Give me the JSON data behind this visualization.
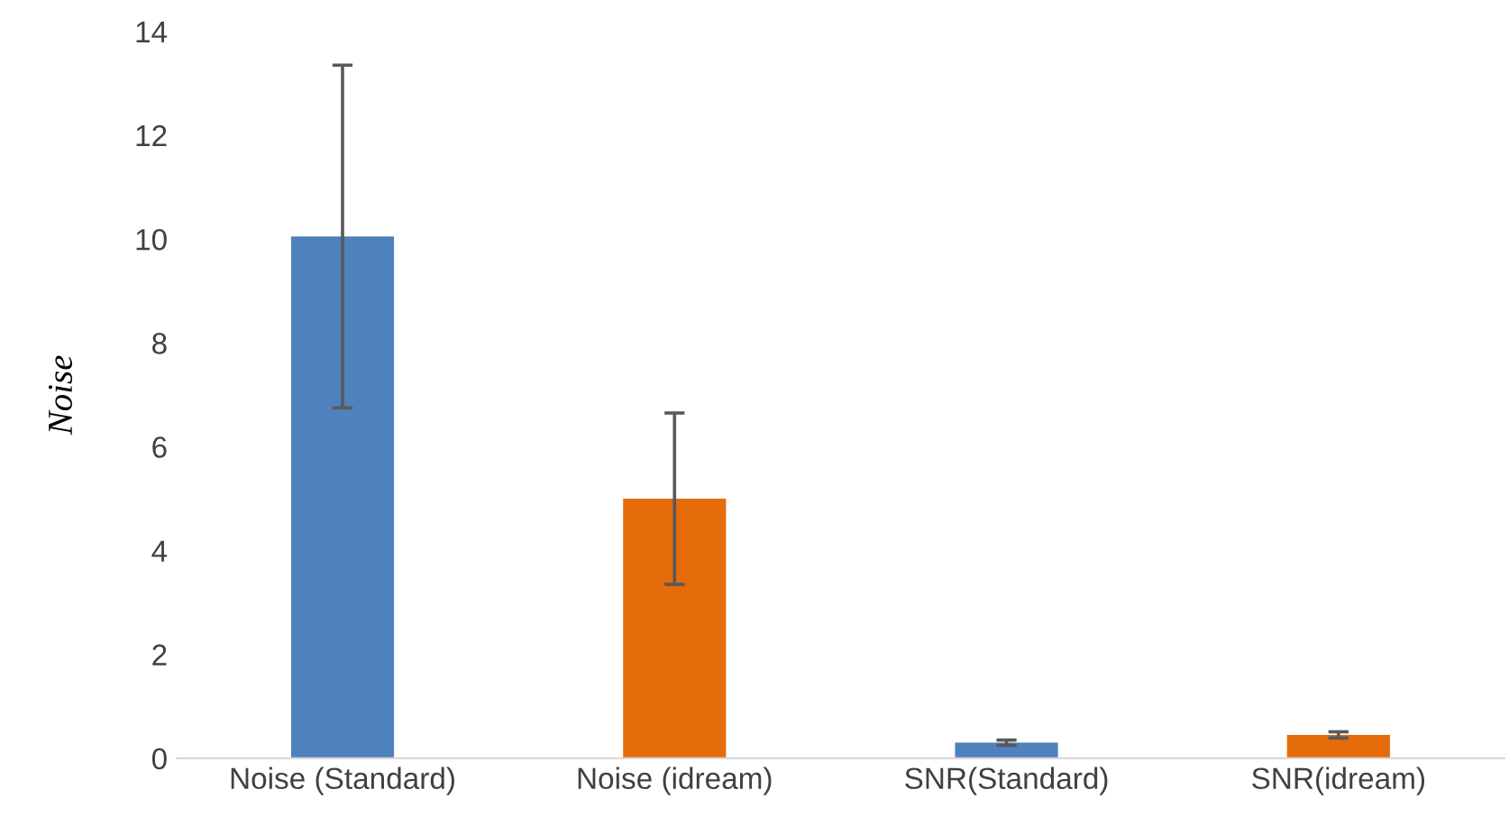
{
  "chart_data": {
    "type": "bar",
    "ylabel": "Noise",
    "categories": [
      "Noise (Standard)",
      "Noise (idream)",
      "SNR(Standard)",
      "SNR(idream)"
    ],
    "values": [
      10.05,
      5.0,
      0.3,
      0.45
    ],
    "colors": [
      "#4f81bd",
      "#e46c0a",
      "#4f81bd",
      "#e46c0a"
    ],
    "errors": [
      3.3,
      1.65,
      0.05,
      0.06
    ],
    "ylim": [
      0,
      14
    ],
    "yticks": [
      0,
      2,
      4,
      6,
      8,
      10,
      12,
      14
    ],
    "grid": false,
    "legend": false
  }
}
